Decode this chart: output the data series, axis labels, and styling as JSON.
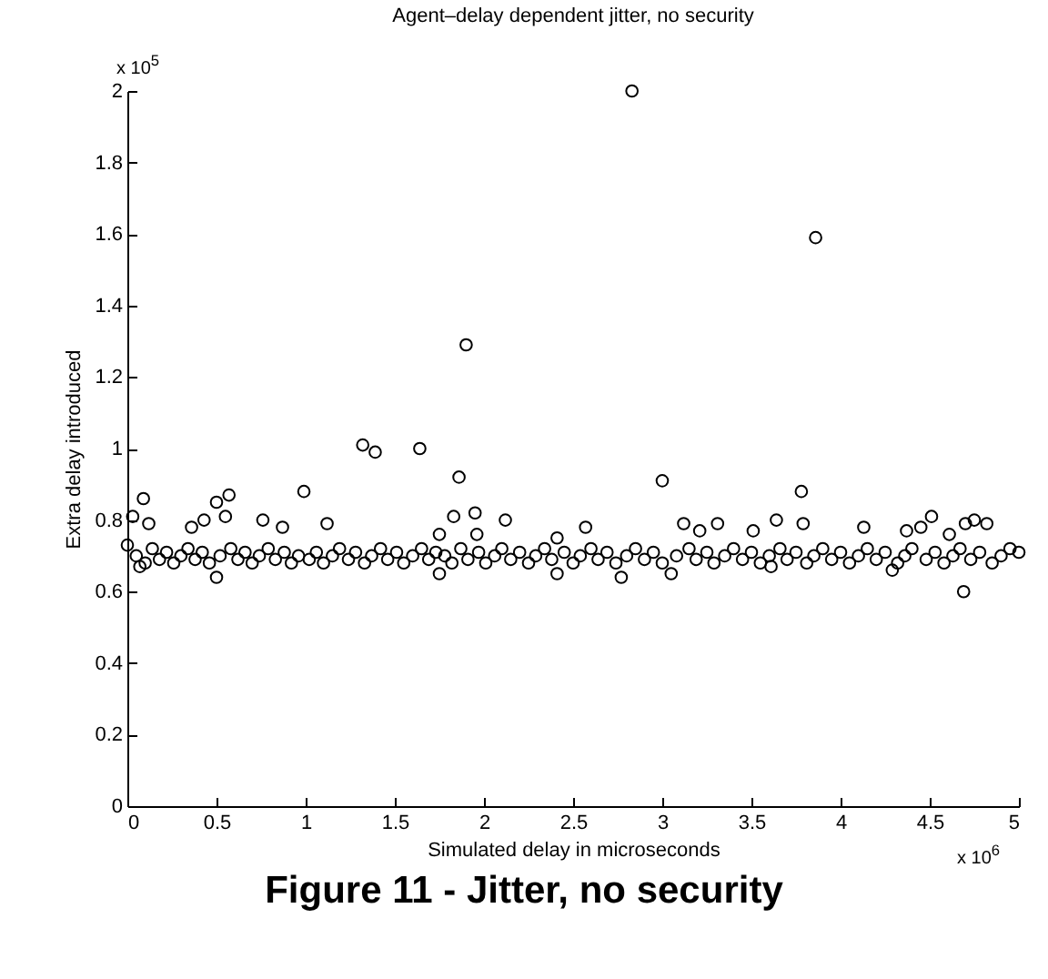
{
  "chart_data": {
    "type": "scatter",
    "title": "Agent–delay dependent jitter, no security",
    "xlabel": "Simulated delay in microseconds",
    "ylabel": "Extra delay introduced",
    "annotations": [
      "x 10$^{5}$",
      "x 10$^{6}$",
      "Figure 11 - Jitter, no security"
    ],
    "xlim": [
      0,
      5
    ],
    "xticks": [
      0,
      0.5,
      1,
      1.5,
      2,
      2.5,
      3,
      3.5,
      4,
      4.5,
      5
    ],
    "ylim": [
      0,
      2
    ],
    "yticks": [
      0,
      0.2,
      0.4,
      0.6,
      0.8,
      1,
      1.2,
      1.4,
      1.6,
      1.8,
      2
    ],
    "marker": "circle",
    "grid": false,
    "legend": false,
    "series": [
      {
        "color": "#000000",
        "x": [
          0.0,
          0.05,
          0.1,
          0.14,
          0.18,
          0.22,
          0.26,
          0.3,
          0.34,
          0.38,
          0.42,
          0.46,
          0.52,
          0.58,
          0.62,
          0.66,
          0.7,
          0.74,
          0.79,
          0.83,
          0.88,
          0.92,
          0.96,
          1.02,
          1.06,
          1.1,
          1.15,
          1.19,
          1.24,
          1.28,
          1.33,
          1.37,
          1.42,
          1.46,
          1.51,
          1.55,
          1.6,
          1.65,
          1.69,
          1.73,
          1.78,
          1.82,
          1.87,
          1.91,
          1.97,
          2.01,
          2.06,
          2.1,
          2.15,
          2.2,
          2.25,
          2.29,
          2.34,
          2.38,
          2.45,
          2.5,
          2.54,
          2.6,
          2.64,
          2.69,
          2.74,
          2.8,
          2.85,
          2.9,
          2.95,
          3.0,
          3.08,
          3.15,
          3.19,
          3.25,
          3.29,
          3.35,
          3.4,
          3.45,
          3.5,
          3.55,
          3.6,
          3.66,
          3.7,
          3.75,
          3.81,
          3.85,
          3.9,
          3.95,
          4.0,
          4.05,
          4.1,
          4.15,
          4.2,
          4.25,
          4.32,
          4.36,
          4.4,
          4.48,
          4.53,
          4.58,
          4.63,
          4.67,
          4.73,
          4.78,
          4.85,
          4.9,
          4.95,
          5.0,
          1.32,
          1.39,
          1.64,
          1.86,
          1.9,
          2.83,
          3.86,
          0.09,
          0.5,
          0.57,
          0.99,
          0.03,
          0.12,
          0.36,
          0.43,
          0.55,
          0.76,
          0.87,
          1.12,
          1.83,
          1.95,
          1.96,
          2.12,
          1.75,
          0.5,
          1.75,
          0.07,
          3.0,
          3.78,
          2.57,
          2.41,
          2.41,
          2.77,
          3.05,
          3.12,
          3.21,
          3.31,
          3.51,
          3.64,
          3.79,
          4.13,
          4.37,
          4.45,
          4.51,
          4.61,
          4.7,
          4.75,
          4.82,
          4.69,
          3.61,
          4.29
        ],
        "values": [
          0.73,
          0.7,
          0.68,
          0.72,
          0.69,
          0.71,
          0.68,
          0.7,
          0.72,
          0.69,
          0.71,
          0.68,
          0.7,
          0.72,
          0.69,
          0.71,
          0.68,
          0.7,
          0.72,
          0.69,
          0.71,
          0.68,
          0.7,
          0.69,
          0.71,
          0.68,
          0.7,
          0.72,
          0.69,
          0.71,
          0.68,
          0.7,
          0.72,
          0.69,
          0.71,
          0.68,
          0.7,
          0.72,
          0.69,
          0.71,
          0.7,
          0.68,
          0.72,
          0.69,
          0.71,
          0.68,
          0.7,
          0.72,
          0.69,
          0.71,
          0.68,
          0.7,
          0.72,
          0.69,
          0.71,
          0.68,
          0.7,
          0.72,
          0.69,
          0.71,
          0.68,
          0.7,
          0.72,
          0.69,
          0.71,
          0.68,
          0.7,
          0.72,
          0.69,
          0.71,
          0.68,
          0.7,
          0.72,
          0.69,
          0.71,
          0.68,
          0.7,
          0.72,
          0.69,
          0.71,
          0.68,
          0.7,
          0.72,
          0.69,
          0.71,
          0.68,
          0.7,
          0.72,
          0.69,
          0.71,
          0.68,
          0.7,
          0.72,
          0.69,
          0.71,
          0.68,
          0.7,
          0.72,
          0.69,
          0.71,
          0.68,
          0.7,
          0.72,
          0.71,
          1.01,
          0.99,
          1.0,
          0.92,
          1.29,
          2.0,
          1.59,
          0.86,
          0.85,
          0.87,
          0.88,
          0.81,
          0.79,
          0.78,
          0.8,
          0.81,
          0.8,
          0.78,
          0.79,
          0.81,
          0.82,
          0.76,
          0.8,
          0.76,
          0.64,
          0.65,
          0.67,
          0.91,
          0.88,
          0.78,
          0.75,
          0.65,
          0.64,
          0.65,
          0.79,
          0.77,
          0.79,
          0.77,
          0.8,
          0.79,
          0.78,
          0.77,
          0.78,
          0.81,
          0.76,
          0.79,
          0.8,
          0.79,
          0.6,
          0.67,
          0.66
        ]
      }
    ]
  }
}
